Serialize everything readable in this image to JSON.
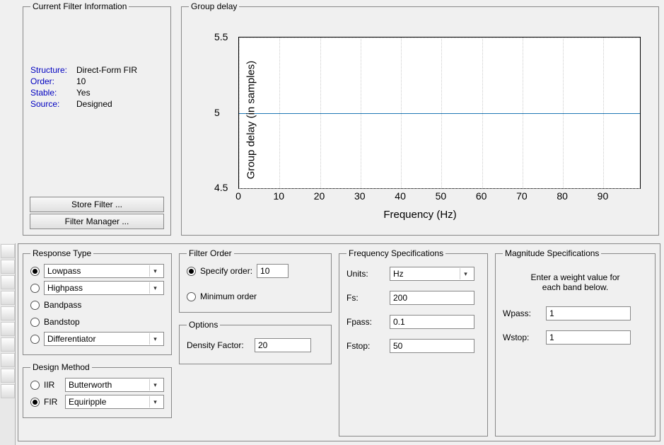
{
  "filterInfo": {
    "legend": "Current Filter Information",
    "rows": [
      {
        "k": "Structure:",
        "v": "Direct-Form FIR"
      },
      {
        "k": "Order:",
        "v": "10"
      },
      {
        "k": "Stable:",
        "v": "Yes"
      },
      {
        "k": "Source:",
        "v": "Designed"
      }
    ],
    "storeBtn": "Store Filter ...",
    "managerBtn": "Filter Manager ..."
  },
  "chart": {
    "legend": "Group delay",
    "xlabel": "Frequency (Hz)",
    "ylabel": "Group delay (in samples)",
    "xticks": [
      0,
      10,
      20,
      30,
      40,
      50,
      60,
      70,
      80,
      90
    ],
    "xlim": [
      0,
      99
    ],
    "yticks": [
      4.5,
      5,
      5.5
    ],
    "ylim": [
      4.5,
      5.5
    ],
    "series_y": 5,
    "line_color": "#1f77b4",
    "grid_color": "#cccccc",
    "bg": "#ffffff"
  },
  "responseType": {
    "legend": "Response Type",
    "items": [
      {
        "label": "Lowpass",
        "combo": true,
        "checked": true
      },
      {
        "label": "Highpass",
        "combo": true,
        "checked": false
      },
      {
        "label": "Bandpass",
        "combo": false,
        "checked": false
      },
      {
        "label": "Bandstop",
        "combo": false,
        "checked": false
      },
      {
        "label": "Differentiator",
        "combo": true,
        "checked": false
      }
    ]
  },
  "designMethod": {
    "legend": "Design Method",
    "items": [
      {
        "prefix": "IIR",
        "label": "Butterworth",
        "checked": false
      },
      {
        "prefix": "FIR",
        "label": "Equiripple",
        "checked": true
      }
    ]
  },
  "filterOrder": {
    "legend": "Filter Order",
    "specifyLabel": "Specify order:",
    "specifyValue": "10",
    "minLabel": "Minimum order",
    "selected": "specify"
  },
  "options": {
    "legend": "Options",
    "densityLabel": "Density Factor:",
    "densityValue": "20"
  },
  "freqSpec": {
    "legend": "Frequency Specifications",
    "unitsLabel": "Units:",
    "unitsValue": "Hz",
    "fsLabel": "Fs:",
    "fsValue": "200",
    "fpassLabel": "Fpass:",
    "fpassValue": "0.1",
    "fstopLabel": "Fstop:",
    "fstopValue": "50"
  },
  "magSpec": {
    "legend": "Magnitude Specifications",
    "hint1": "Enter a weight value for",
    "hint2": "each band below.",
    "wpassLabel": "Wpass:",
    "wpassValue": "1",
    "wstopLabel": "Wstop:",
    "wstopValue": "1"
  }
}
